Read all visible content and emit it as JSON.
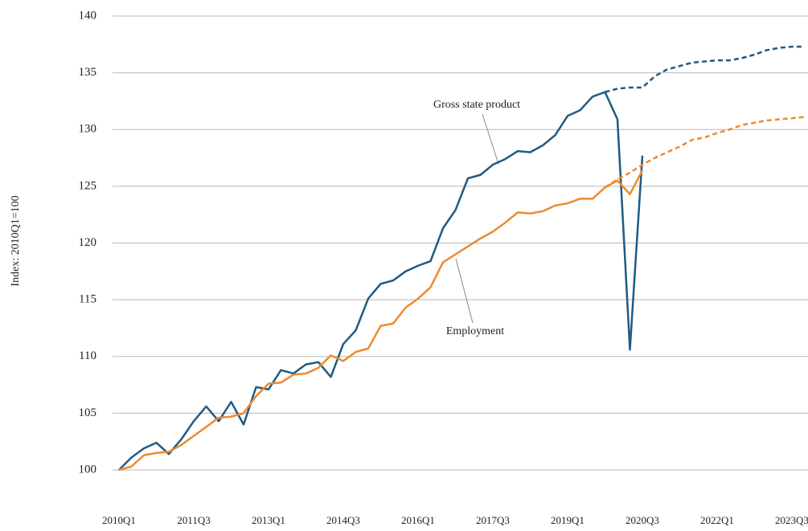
{
  "chart_data": {
    "type": "line",
    "y_label": "Index: 2010Q1=100",
    "categories": [
      "2010Q1",
      null,
      null,
      null,
      null,
      null,
      "2011Q3",
      null,
      null,
      null,
      null,
      null,
      "2013Q1",
      null,
      null,
      null,
      null,
      null,
      "2014Q3",
      null,
      null,
      null,
      null,
      null,
      "2016Q1",
      null,
      null,
      null,
      null,
      null,
      "2017Q3",
      null,
      null,
      null,
      null,
      null,
      "2019Q1",
      null,
      null,
      null,
      null,
      null,
      "2020Q3",
      null,
      null,
      null,
      null,
      null,
      "2022Q1",
      null,
      null,
      null,
      null,
      null,
      "2023Q3",
      null
    ],
    "series": [
      {
        "name": "Gross state product",
        "color": "#1f5b82",
        "values": [
          100.0,
          101.1,
          101.9,
          102.4,
          101.4,
          102.7,
          104.3,
          105.6,
          104.3,
          106.0,
          104.0,
          107.3,
          107.1,
          108.8,
          108.5,
          109.3,
          109.5,
          108.2,
          111.1,
          112.3,
          115.1,
          116.4,
          116.7,
          117.5,
          118.0,
          118.4,
          121.3,
          122.9,
          125.7,
          126.0,
          126.9,
          127.4,
          128.1,
          128.0,
          128.6,
          129.5,
          131.2,
          131.7,
          132.9,
          133.3,
          130.9,
          110.6,
          127.7,
          null,
          null,
          null,
          null,
          null,
          null,
          null,
          null,
          null,
          null,
          null,
          null,
          null
        ],
        "forecast": [
          null,
          null,
          null,
          null,
          null,
          null,
          null,
          null,
          null,
          null,
          null,
          null,
          null,
          null,
          null,
          null,
          null,
          null,
          null,
          null,
          null,
          null,
          null,
          null,
          null,
          null,
          null,
          null,
          null,
          null,
          null,
          null,
          null,
          null,
          null,
          null,
          null,
          null,
          null,
          133.3,
          133.6,
          133.7,
          133.7,
          134.7,
          135.3,
          135.6,
          135.9,
          136.0,
          136.1,
          136.1,
          136.3,
          136.6,
          137.0,
          137.2,
          137.3,
          137.3
        ]
      },
      {
        "name": "Employment",
        "color": "#ee8a2f",
        "values": [
          100.0,
          100.3,
          101.3,
          101.5,
          101.6,
          102.2,
          103.0,
          103.8,
          104.6,
          104.7,
          105.0,
          106.5,
          107.6,
          107.7,
          108.4,
          108.5,
          109.0,
          110.1,
          109.6,
          110.4,
          110.7,
          112.7,
          112.9,
          114.3,
          115.1,
          116.1,
          118.3,
          119.0,
          119.7,
          120.4,
          121.0,
          121.8,
          122.7,
          122.6,
          122.8,
          123.3,
          123.5,
          123.9,
          123.9,
          124.9,
          125.5,
          124.3,
          126.4,
          null,
          null,
          null,
          null,
          null,
          null,
          null,
          null,
          null,
          null,
          null,
          null,
          null
        ],
        "forecast": [
          null,
          null,
          null,
          null,
          null,
          null,
          null,
          null,
          null,
          null,
          null,
          null,
          null,
          null,
          null,
          null,
          null,
          null,
          null,
          null,
          null,
          null,
          null,
          null,
          null,
          null,
          null,
          null,
          null,
          null,
          null,
          null,
          null,
          null,
          null,
          null,
          null,
          null,
          null,
          124.9,
          125.6,
          126.2,
          126.9,
          127.5,
          128.0,
          128.5,
          129.1,
          129.3,
          129.7,
          130.0,
          130.4,
          130.6,
          130.8,
          130.9,
          131.0,
          131.1
        ]
      }
    ],
    "ylim": [
      100,
      140
    ],
    "yticks": [
      100,
      105,
      110,
      115,
      120,
      125,
      130,
      135,
      140
    ],
    "grid": true
  }
}
